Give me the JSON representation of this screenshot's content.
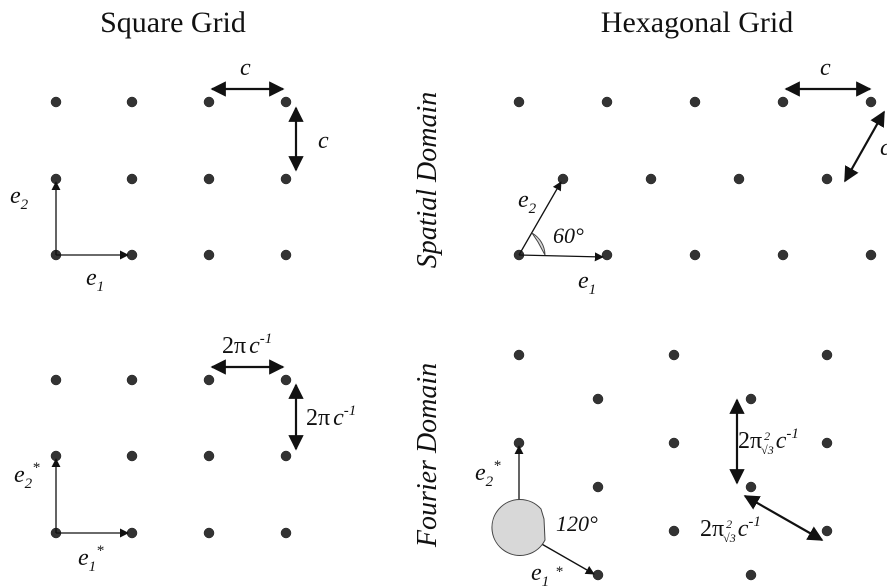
{
  "titles": {
    "square": "Square Grid",
    "hexagonal": "Hexagonal Grid"
  },
  "domains": {
    "spatial": "Spatial Domain",
    "fourier": "Fourier Domain"
  },
  "labels": {
    "c": "c",
    "e1": "e",
    "e1_sub": "1",
    "e2": "e",
    "e2_sub": "2",
    "star": "*",
    "two_pi": "2π",
    "c_inv_base": "c",
    "c_inv_exp": "-1",
    "sqrt_num": "2",
    "sqrt_den": "√3",
    "angle_60": "60°",
    "angle_120": "120°"
  },
  "colors": {
    "dot": "#333333",
    "arrow": "#111111",
    "angle_arc_fill": "#d8d8d8"
  }
}
